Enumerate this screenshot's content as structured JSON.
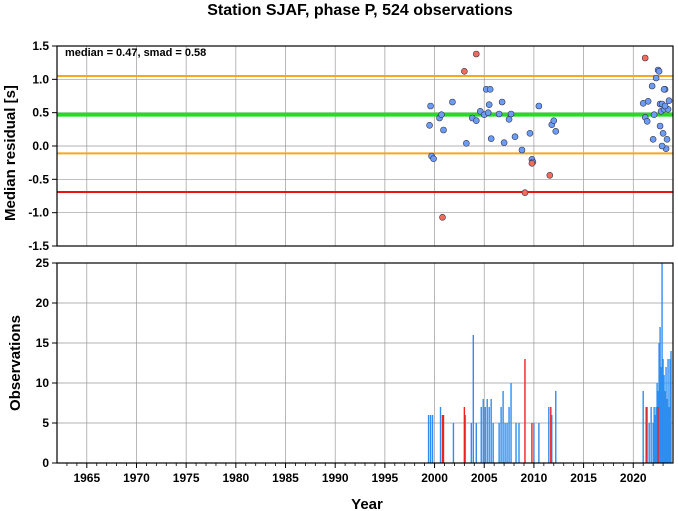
{
  "chart_data": [
    {
      "type": "scatter",
      "title": "Station SJAF, phase P, 524 observations",
      "xlabel": "",
      "ylabel": "Median residual [s]",
      "annotation": "median = 0.47, smad = 0.58",
      "xlim": [
        1962,
        2024
      ],
      "ylim": [
        -1.5,
        1.5
      ],
      "xticks": [
        "1965",
        "1970",
        "1975",
        "1980",
        "1985",
        "1990",
        "1995",
        "2000",
        "2005",
        "2010",
        "2015",
        "2020"
      ],
      "yticks": [
        "-1.5",
        "-1.0",
        "-0.5",
        "0.0",
        "0.5",
        "1.0",
        "1.5"
      ],
      "grid": true,
      "reference_lines": [
        {
          "y": 0.47,
          "color": "#22dd22"
        },
        {
          "y": 1.05,
          "color": "#f5a623"
        },
        {
          "y": -0.11,
          "color": "#f5a623"
        },
        {
          "y": -0.69,
          "color": "#ee1111"
        }
      ],
      "series": [
        {
          "color": "#6b9cf7",
          "points": [
            [
              1999.6,
              0.6
            ],
            [
              1999.5,
              0.31
            ],
            [
              1999.7,
              -0.15
            ],
            [
              1999.9,
              -0.19
            ],
            [
              2000.5,
              0.42
            ],
            [
              2000.7,
              0.47
            ],
            [
              2000.9,
              0.24
            ],
            [
              2001.8,
              0.66
            ],
            [
              2003.2,
              0.04
            ],
            [
              2003.8,
              0.42
            ],
            [
              2004.2,
              0.38
            ],
            [
              2004.6,
              0.52
            ],
            [
              2005.0,
              0.47
            ],
            [
              2005.2,
              0.85
            ],
            [
              2005.4,
              0.5
            ],
            [
              2005.5,
              0.62
            ],
            [
              2005.6,
              0.85
            ],
            [
              2005.7,
              0.11
            ],
            [
              2006.5,
              0.48
            ],
            [
              2006.8,
              0.66
            ],
            [
              2007.0,
              0.05
            ],
            [
              2007.5,
              0.4
            ],
            [
              2007.7,
              0.48
            ],
            [
              2008.1,
              0.14
            ],
            [
              2008.8,
              -0.06
            ],
            [
              2009.6,
              0.19
            ],
            [
              2009.8,
              -0.2
            ],
            [
              2009.9,
              -0.24
            ],
            [
              2010.5,
              0.6
            ],
            [
              2011.8,
              0.32
            ],
            [
              2012.0,
              0.38
            ],
            [
              2012.2,
              0.22
            ],
            [
              2021.0,
              0.64
            ],
            [
              2021.2,
              0.43
            ],
            [
              2021.4,
              0.37
            ],
            [
              2021.5,
              0.67
            ],
            [
              2021.9,
              0.9
            ],
            [
              2022.1,
              0.47
            ],
            [
              2022.3,
              1.02
            ],
            [
              2022.5,
              1.14
            ],
            [
              2022.6,
              1.12
            ],
            [
              2022.7,
              0.63
            ],
            [
              2022.8,
              0.52
            ],
            [
              2022.9,
              0.63
            ],
            [
              2023.0,
              0.19
            ],
            [
              2023.1,
              0.55
            ],
            [
              2023.2,
              0.85
            ],
            [
              2023.3,
              -0.04
            ],
            [
              2023.4,
              0.1
            ],
            [
              2023.5,
              0.55
            ],
            [
              2023.6,
              0.68
            ],
            [
              2022.0,
              0.1
            ],
            [
              2022.7,
              0.3
            ],
            [
              2022.9,
              0.0
            ],
            [
              2023.1,
              0.85
            ],
            [
              2023.2,
              0.6
            ]
          ]
        },
        {
          "color": "#f26b5b",
          "points": [
            [
              2000.8,
              -1.07
            ],
            [
              2003.0,
              1.12
            ],
            [
              2004.2,
              1.38
            ],
            [
              2009.1,
              -0.7
            ],
            [
              2009.8,
              -0.26
            ],
            [
              2011.6,
              -0.44
            ],
            [
              2021.2,
              1.32
            ]
          ]
        }
      ]
    },
    {
      "type": "bar",
      "title": "",
      "xlabel": "Year",
      "ylabel": "Observations",
      "xlim": [
        1962,
        2024
      ],
      "ylim": [
        0,
        25
      ],
      "xticks": [
        "1965",
        "1970",
        "1975",
        "1980",
        "1985",
        "1990",
        "1995",
        "2000",
        "2005",
        "2010",
        "2015",
        "2020"
      ],
      "yticks": [
        "0",
        "5",
        "10",
        "15",
        "20",
        "25"
      ],
      "grid": true,
      "series": [
        {
          "color": "#2e8ef0",
          "bars": [
            [
              1999.4,
              6
            ],
            [
              1999.6,
              6
            ],
            [
              1999.8,
              6
            ],
            [
              2000.6,
              7
            ],
            [
              2001.9,
              5
            ],
            [
              2003.1,
              6
            ],
            [
              2003.7,
              5
            ],
            [
              2003.9,
              16
            ],
            [
              2004.2,
              5
            ],
            [
              2004.7,
              7
            ],
            [
              2004.9,
              8
            ],
            [
              2005.1,
              7
            ],
            [
              2005.3,
              8
            ],
            [
              2005.5,
              7
            ],
            [
              2005.7,
              8
            ],
            [
              2005.9,
              5
            ],
            [
              2006.5,
              5
            ],
            [
              2006.7,
              7
            ],
            [
              2006.9,
              9
            ],
            [
              2007.1,
              5
            ],
            [
              2007.3,
              5
            ],
            [
              2007.5,
              7
            ],
            [
              2007.7,
              10
            ],
            [
              2008.2,
              5
            ],
            [
              2008.5,
              5
            ],
            [
              2010.0,
              5
            ],
            [
              2010.5,
              5
            ],
            [
              2011.5,
              7
            ],
            [
              2011.8,
              6
            ],
            [
              2012.2,
              9
            ],
            [
              2021.0,
              9
            ],
            [
              2021.4,
              7
            ],
            [
              2021.6,
              5
            ],
            [
              2021.8,
              7
            ],
            [
              2022.0,
              5
            ],
            [
              2022.2,
              6
            ],
            [
              2022.3,
              7
            ],
            [
              2022.4,
              10
            ],
            [
              2022.5,
              9
            ],
            [
              2022.6,
              15
            ],
            [
              2022.7,
              17
            ],
            [
              2022.8,
              12
            ],
            [
              2022.9,
              25
            ],
            [
              2023.0,
              13
            ],
            [
              2023.1,
              11
            ],
            [
              2023.2,
              9
            ],
            [
              2023.3,
              12
            ],
            [
              2023.4,
              8
            ],
            [
              2023.5,
              13
            ],
            [
              2023.6,
              7
            ],
            [
              2023.7,
              13
            ],
            [
              2023.8,
              14
            ],
            [
              2022.1,
              7
            ],
            [
              2022.6,
              10
            ]
          ]
        },
        {
          "color": "#ee2222",
          "bars": [
            [
              2000.8,
              6
            ],
            [
              2000.9,
              6
            ],
            [
              2003.0,
              7
            ],
            [
              2009.1,
              13
            ],
            [
              2009.8,
              5
            ],
            [
              2011.7,
              7
            ],
            [
              2021.3,
              7
            ],
            [
              2022.5,
              7
            ]
          ]
        }
      ]
    }
  ]
}
